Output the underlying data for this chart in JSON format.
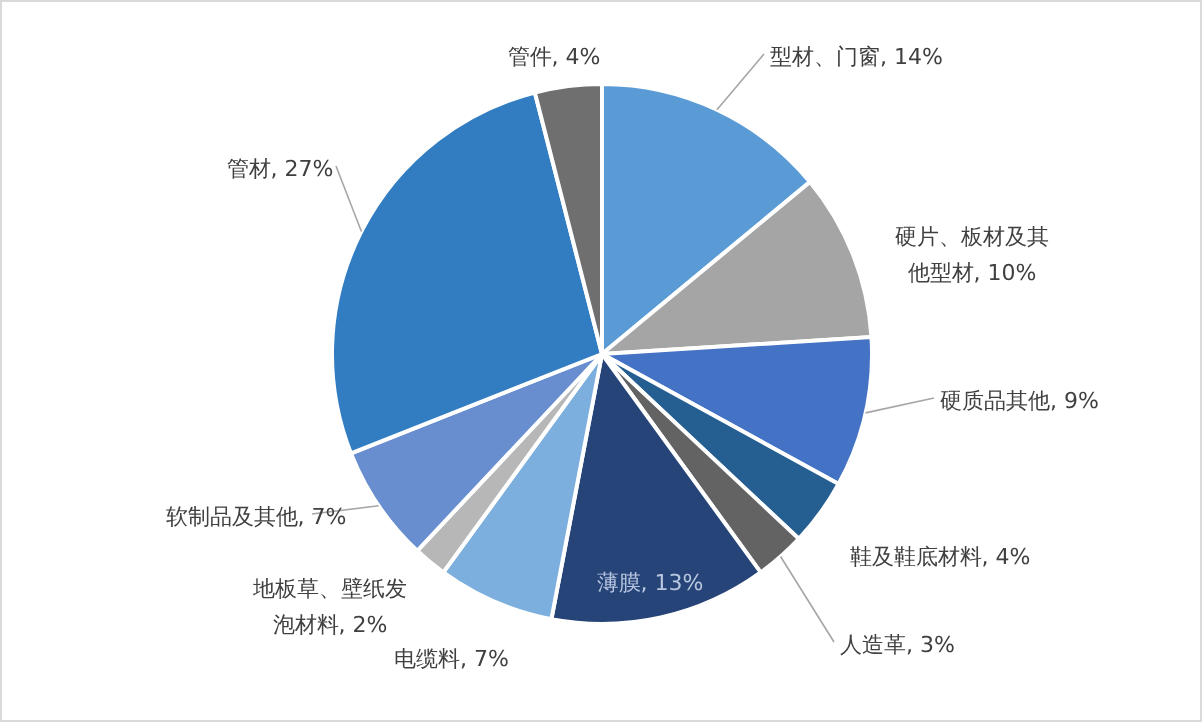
{
  "chart_data": {
    "type": "pie",
    "categories": [
      "型材、门窗",
      "硬片、板材及其他型材",
      "硬质品其他",
      "鞋及鞋底材料",
      "人造革",
      "薄膜",
      "电缆料",
      "地板草、壁纸发泡材料",
      "软制品及其他",
      "管材",
      "管件"
    ],
    "values": [
      14,
      10,
      9,
      4,
      3,
      13,
      7,
      2,
      7,
      27,
      4
    ],
    "value_labels": [
      "14%",
      "10%",
      "9%",
      "4%",
      "3%",
      "13%",
      "7%",
      "2%",
      "7%",
      "27%",
      "4%"
    ],
    "colors": [
      "#5b9bd5",
      "#a5a5a5",
      "#4472c4",
      "#255e91",
      "#636363",
      "#264478",
      "#7cafdd",
      "#b7b7b7",
      "#698ed0",
      "#327dc2",
      "#6f6f6f"
    ]
  }
}
